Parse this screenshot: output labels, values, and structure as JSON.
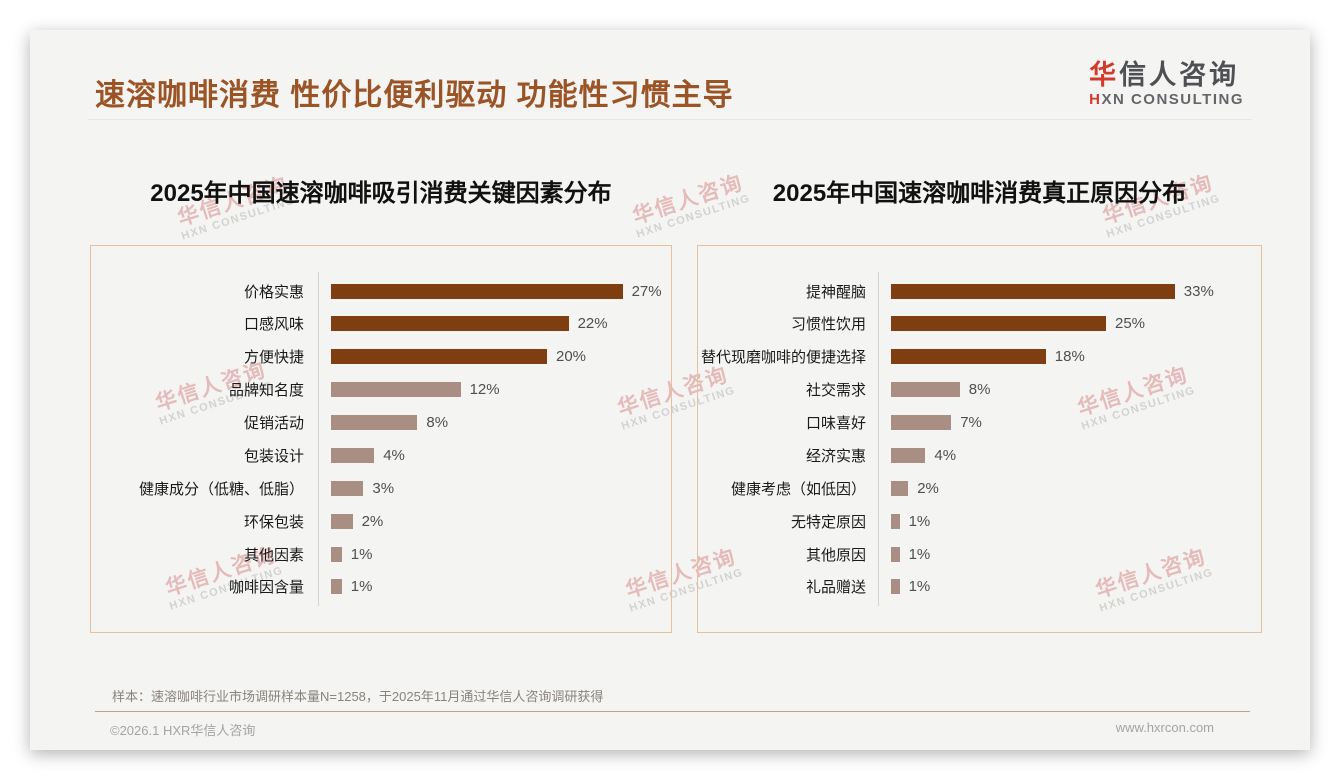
{
  "header": {
    "title": "速溶咖啡消费 性价比便利驱动 功能性习惯主导",
    "logo": {
      "cn_first": "华",
      "cn_rest": "信人咨询",
      "en_first": "H",
      "en_rest": "XN CONSULTING"
    }
  },
  "watermark": {
    "cn": "华信人咨询",
    "en": "HXN CONSULTING"
  },
  "chart_data": [
    {
      "type": "bar",
      "orientation": "horizontal",
      "title": "2025年中国速溶咖啡吸引消费关键因素分布",
      "unit": "%",
      "xlim": [
        0,
        30
      ],
      "grid": false,
      "categories": [
        "价格实惠",
        "口感风味",
        "方便快捷",
        "品牌知名度",
        "促销活动",
        "包装设计",
        "健康成分（低糖、低脂）",
        "环保包装",
        "其他因素",
        "咖啡因含量"
      ],
      "values": [
        27,
        22,
        20,
        12,
        8,
        4,
        3,
        2,
        1,
        1
      ],
      "labels": [
        "27%",
        "22%",
        "20%",
        "12%",
        "8%",
        "4%",
        "3%",
        "2%",
        "1%",
        "1%"
      ],
      "bar_tones": [
        "dark",
        "dark",
        "dark",
        "light",
        "light",
        "light",
        "light",
        "light",
        "light",
        "light"
      ],
      "bar_colors": {
        "dark": "#7E3E10",
        "light": "#A98E83"
      }
    },
    {
      "type": "bar",
      "orientation": "horizontal",
      "title": "2025年中国速溶咖啡消费真正原因分布",
      "unit": "%",
      "xlim": [
        0,
        36
      ],
      "grid": false,
      "categories": [
        "提神醒脑",
        "习惯性饮用",
        "替代现磨咖啡的便捷选择",
        "社交需求",
        "口味喜好",
        "经济实惠",
        "健康考虑（如低因）",
        "无特定原因",
        "其他原因",
        "礼品赠送"
      ],
      "values": [
        33,
        25,
        18,
        8,
        7,
        4,
        2,
        1,
        1,
        1
      ],
      "labels": [
        "33%",
        "25%",
        "18%",
        "8%",
        "7%",
        "4%",
        "2%",
        "1%",
        "1%",
        "1%"
      ],
      "bar_tones": [
        "dark",
        "dark",
        "dark",
        "light",
        "light",
        "light",
        "light",
        "light",
        "light",
        "light"
      ],
      "bar_colors": {
        "dark": "#7E3E10",
        "light": "#A98E83"
      }
    }
  ],
  "footer": {
    "note": "样本：速溶咖啡行业市场调研样本量N=1258，于2025年11月通过华信人咨询调研获得",
    "copyright": "©2026.1 HXR华信人咨询",
    "website": "www.hxrcon.com"
  }
}
